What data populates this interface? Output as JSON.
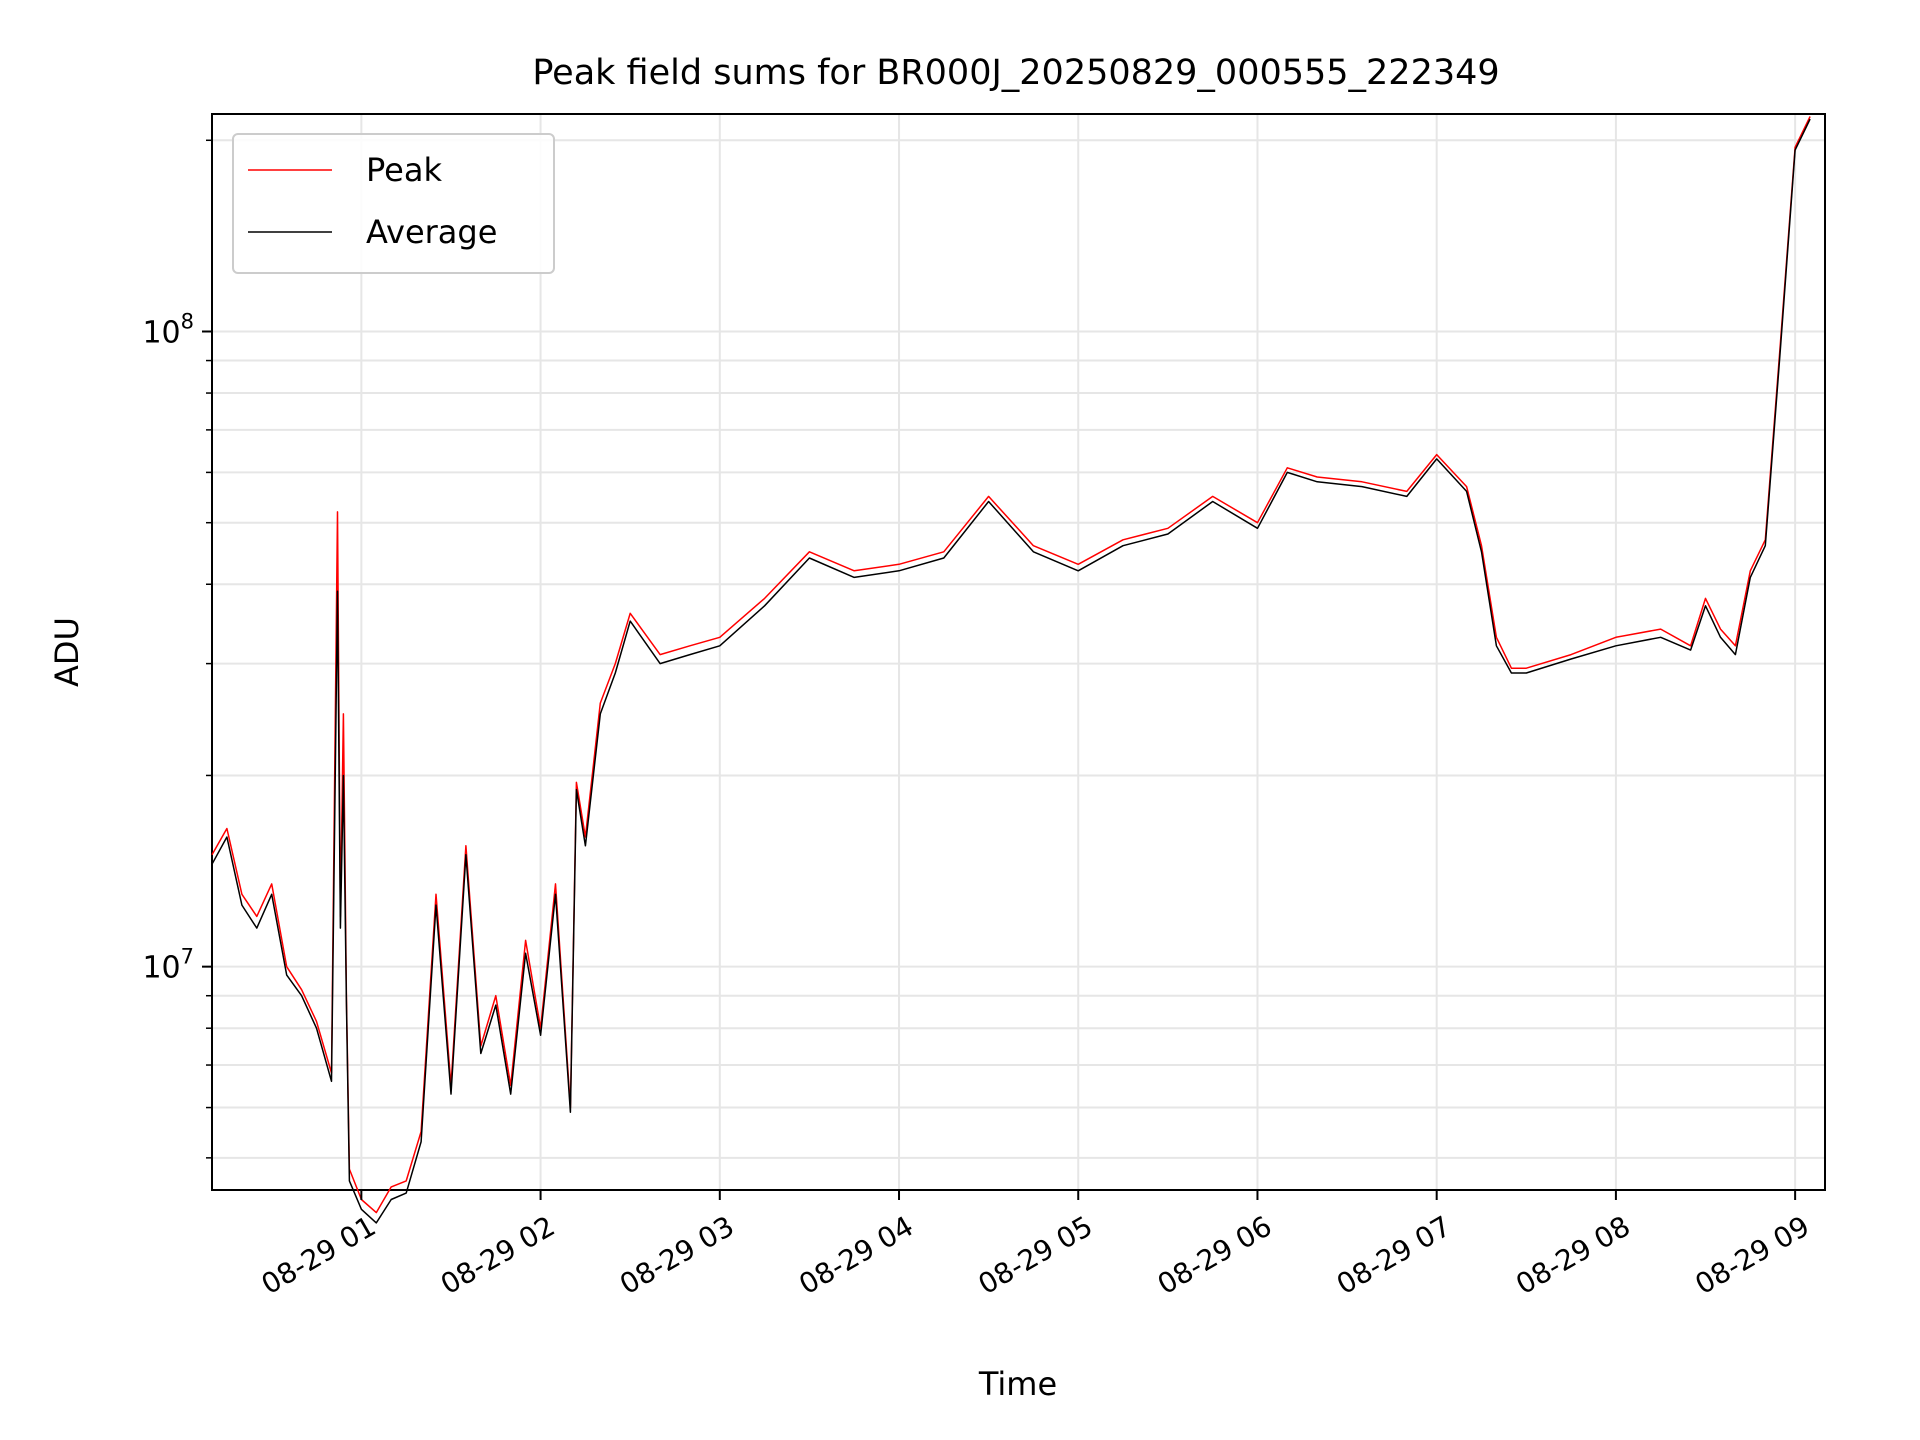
{
  "chart_data": {
    "type": "line",
    "title": "Peak field sums for BR000J_20250829_000555_222349",
    "xlabel": "Time",
    "ylabel": "ADU",
    "xlim": [
      "2025-08-29 00:10",
      "2025-08-29 09:10"
    ],
    "ylim": [
      4450000,
      220000000
    ],
    "yscale": "log",
    "grid": true,
    "legend": "top-left",
    "x_ticks": [
      "08-29 01",
      "08-29 02",
      "08-29 03",
      "08-29 04",
      "08-29 05",
      "08-29 06",
      "08-29 07",
      "08-29 08",
      "08-29 09"
    ],
    "y_ticks": [
      {
        "value": 10000000,
        "base": "10",
        "exp": "7"
      },
      {
        "value": 100000000,
        "base": "10",
        "exp": "8"
      }
    ],
    "x": [
      "2025-08-29 00:10",
      "2025-08-29 00:15",
      "2025-08-29 00:20",
      "2025-08-29 00:25",
      "2025-08-29 00:30",
      "2025-08-29 00:35",
      "2025-08-29 00:40",
      "2025-08-29 00:45",
      "2025-08-29 00:50",
      "2025-08-29 00:52",
      "2025-08-29 00:53",
      "2025-08-29 00:54",
      "2025-08-29 00:55",
      "2025-08-29 00:56",
      "2025-08-29 01:00",
      "2025-08-29 01:05",
      "2025-08-29 01:10",
      "2025-08-29 01:15",
      "2025-08-29 01:20",
      "2025-08-29 01:25",
      "2025-08-29 01:30",
      "2025-08-29 01:35",
      "2025-08-29 01:40",
      "2025-08-29 01:45",
      "2025-08-29 01:50",
      "2025-08-29 01:55",
      "2025-08-29 02:00",
      "2025-08-29 02:05",
      "2025-08-29 02:10",
      "2025-08-29 02:12",
      "2025-08-29 02:15",
      "2025-08-29 02:20",
      "2025-08-29 02:25",
      "2025-08-29 02:30",
      "2025-08-29 02:40",
      "2025-08-29 02:50",
      "2025-08-29 03:00",
      "2025-08-29 03:15",
      "2025-08-29 03:30",
      "2025-08-29 03:45",
      "2025-08-29 04:00",
      "2025-08-29 04:15",
      "2025-08-29 04:30",
      "2025-08-29 04:45",
      "2025-08-29 05:00",
      "2025-08-29 05:15",
      "2025-08-29 05:30",
      "2025-08-29 05:45",
      "2025-08-29 06:00",
      "2025-08-29 06:10",
      "2025-08-29 06:20",
      "2025-08-29 06:35",
      "2025-08-29 06:50",
      "2025-08-29 07:00",
      "2025-08-29 07:10",
      "2025-08-29 07:15",
      "2025-08-29 07:20",
      "2025-08-29 07:25",
      "2025-08-29 07:30",
      "2025-08-29 07:45",
      "2025-08-29 08:00",
      "2025-08-29 08:15",
      "2025-08-29 08:25",
      "2025-08-29 08:30",
      "2025-08-29 08:35",
      "2025-08-29 08:40",
      "2025-08-29 08:45",
      "2025-08-29 08:50",
      "2025-08-29 08:55",
      "2025-08-29 09:00",
      "2025-08-29 09:05"
    ],
    "series": [
      {
        "name": "Peak",
        "color": "#ff0000",
        "values": [
          15000000,
          16500000,
          13000000,
          12000000,
          13500000,
          10000000,
          9200000,
          8200000,
          6800000,
          52000000,
          12000000,
          25000000,
          9000000,
          4800000,
          4300000,
          4100000,
          4500000,
          4600000,
          5500000,
          13000000,
          6500000,
          15500000,
          7500000,
          9000000,
          6500000,
          11000000,
          8000000,
          13500000,
          6000000,
          19500000,
          16000000,
          26000000,
          30000000,
          36000000,
          31000000,
          32000000,
          33000000,
          38000000,
          45000000,
          42000000,
          43000000,
          45000000,
          55000000,
          46000000,
          43000000,
          47000000,
          49000000,
          55000000,
          50000000,
          61000000,
          59000000,
          58000000,
          56000000,
          64000000,
          57000000,
          46000000,
          33000000,
          29500000,
          29500000,
          31000000,
          33000000,
          34000000,
          32000000,
          38000000,
          34000000,
          32000000,
          42000000,
          47000000,
          95000000,
          195000000,
          218000000
        ]
      },
      {
        "name": "Average",
        "color": "#000000",
        "values": [
          14500000,
          16000000,
          12500000,
          11500000,
          13000000,
          9700000,
          9000000,
          8000000,
          6600000,
          39000000,
          11500000,
          20000000,
          8800000,
          4600000,
          4150000,
          3950000,
          4300000,
          4400000,
          5300000,
          12500000,
          6300000,
          15000000,
          7300000,
          8700000,
          6300000,
          10500000,
          7800000,
          13000000,
          5900000,
          19000000,
          15500000,
          25000000,
          29000000,
          35000000,
          30000000,
          31000000,
          32000000,
          37000000,
          44000000,
          41000000,
          42000000,
          44000000,
          54000000,
          45000000,
          42000000,
          46000000,
          48000000,
          54000000,
          49000000,
          60000000,
          58000000,
          57000000,
          55000000,
          63000000,
          56000000,
          45000000,
          32000000,
          29000000,
          29000000,
          30500000,
          32000000,
          33000000,
          31500000,
          37000000,
          33000000,
          31000000,
          41000000,
          46000000,
          93000000,
          193000000,
          216000000
        ]
      }
    ]
  }
}
